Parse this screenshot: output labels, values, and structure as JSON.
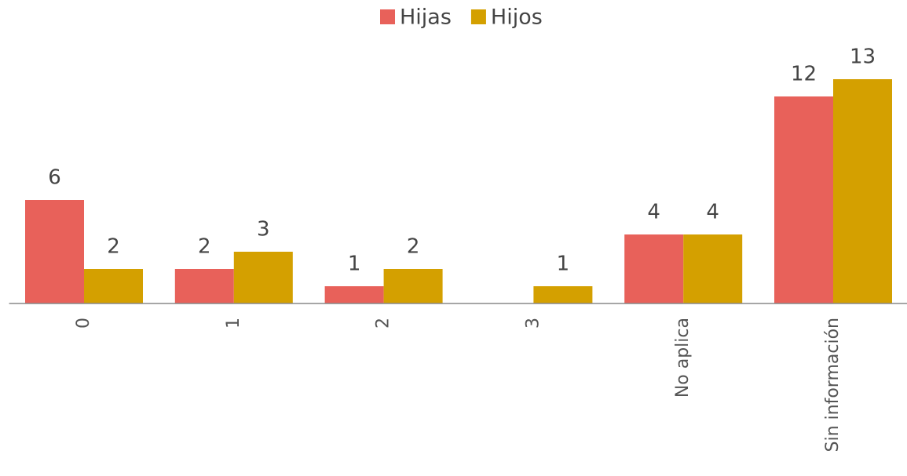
{
  "chart_data": {
    "type": "bar",
    "categories": [
      "0",
      "1",
      "2",
      "3",
      "No aplica",
      "Sin información"
    ],
    "series": [
      {
        "name": "Hijas",
        "color": "#e8615a",
        "values": [
          6,
          2,
          1,
          null,
          4,
          12
        ]
      },
      {
        "name": "Hijos",
        "color": "#d4a000",
        "values": [
          2,
          3,
          2,
          1,
          4,
          13
        ]
      }
    ],
    "legend": "top"
  }
}
